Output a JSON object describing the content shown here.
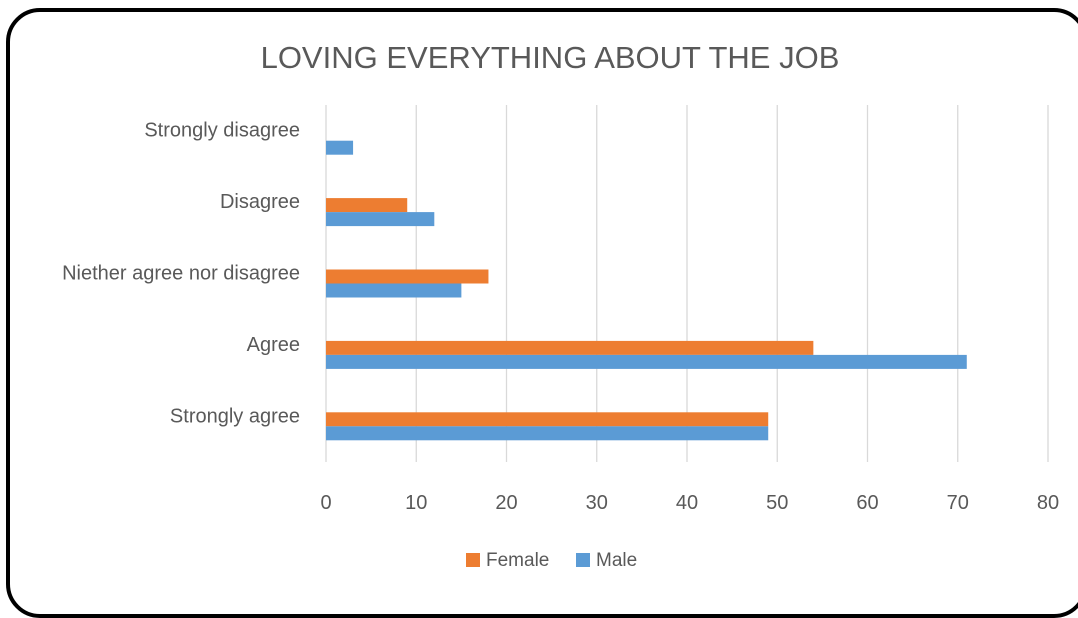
{
  "chart_data": {
    "type": "bar",
    "orientation": "horizontal",
    "title": "LOVING EVERYTHING ABOUT THE JOB",
    "categories": [
      "Strongly disagree",
      "Disagree",
      "Niether agree nor disagree",
      "Agree",
      "Strongly agree"
    ],
    "series": [
      {
        "name": "Female",
        "color": "#ed7d31",
        "values": [
          0,
          9,
          18,
          54,
          49
        ]
      },
      {
        "name": "Male",
        "color": "#5b9bd5",
        "values": [
          3,
          12,
          15,
          71,
          49
        ]
      }
    ],
    "xlim": [
      0,
      80
    ],
    "xticks": [
      "0",
      "10",
      "20",
      "30",
      "40",
      "50",
      "60",
      "70",
      "80"
    ],
    "grid": true,
    "legend_position": "bottom"
  }
}
